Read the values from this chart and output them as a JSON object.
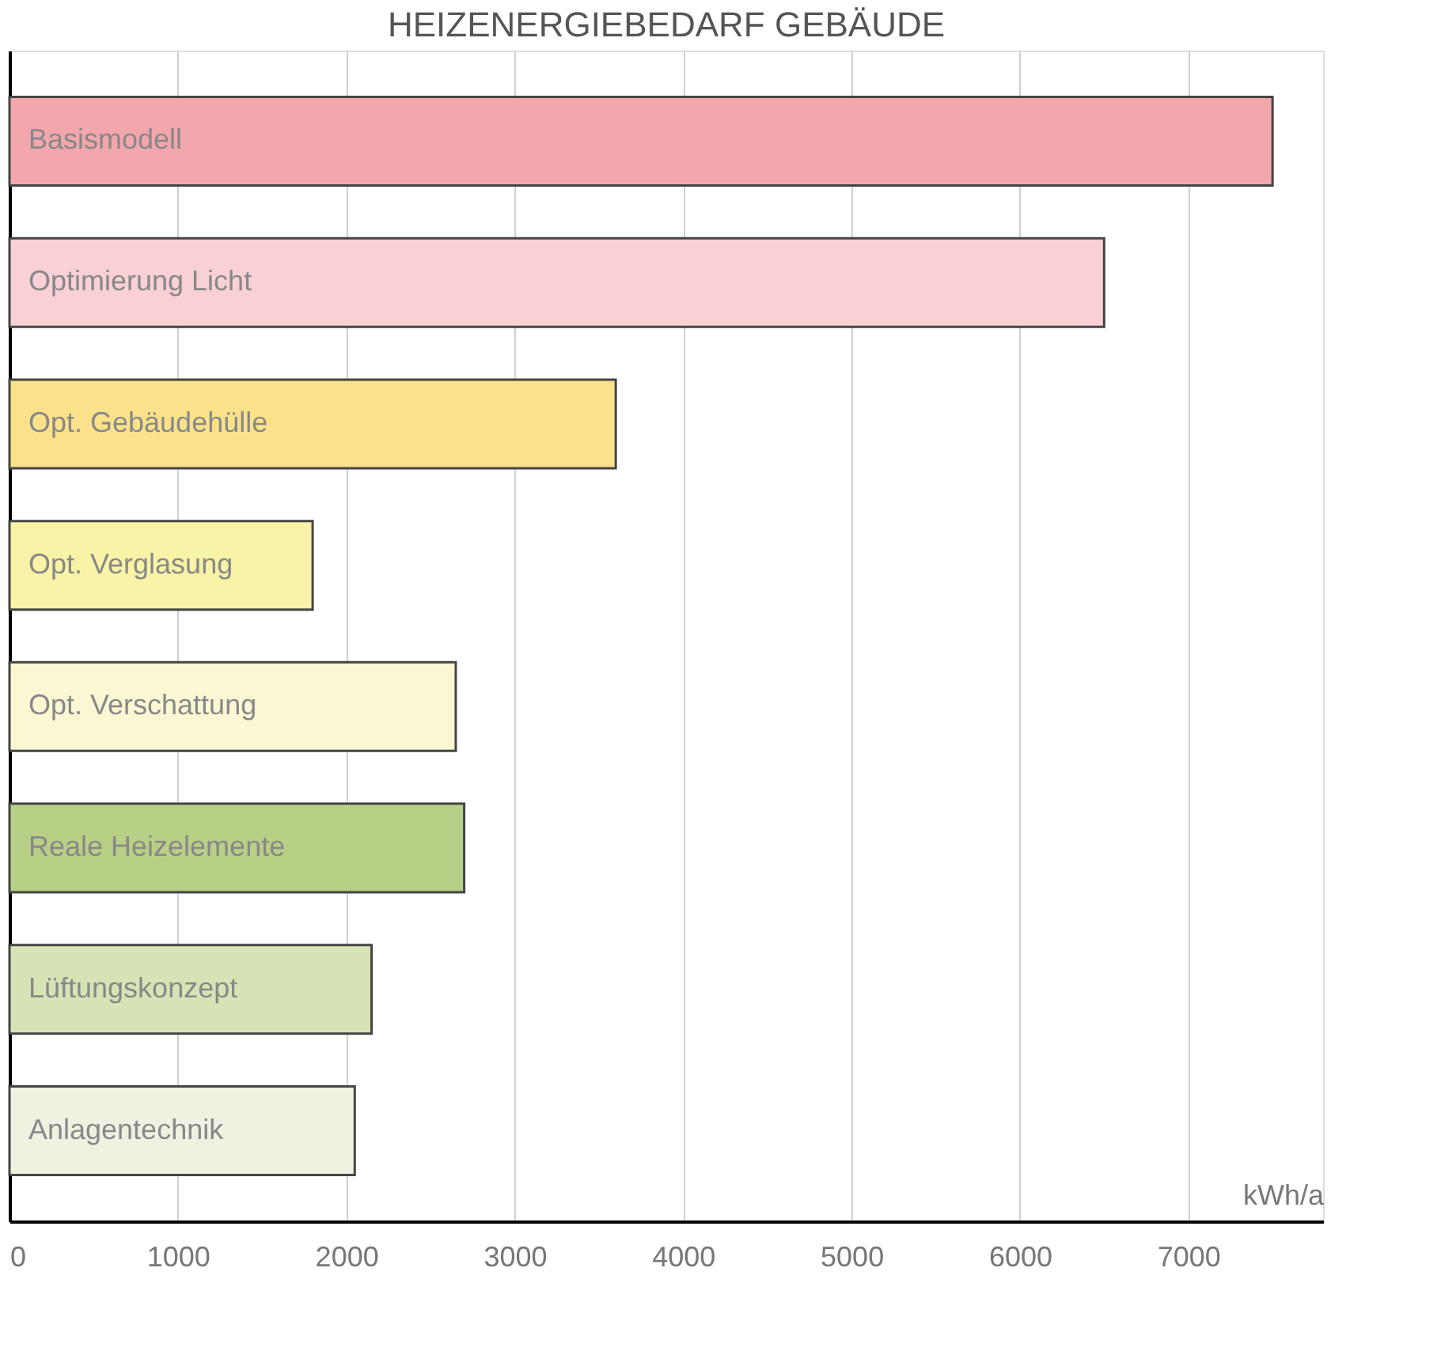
{
  "chart_data": {
    "type": "bar",
    "orientation": "horizontal",
    "title": "HEIZENERGIEBEDARF GEBÄUDE",
    "xlabel": "kWh/a",
    "categories": [
      "Basismodell",
      "Optimierung Licht",
      "Opt. Gebäudehülle",
      "Opt. Verglasung",
      "Opt. Verschattung",
      "Reale Heizelemente",
      "Lüftungskonzept",
      "Anlagentechnik"
    ],
    "values": [
      7500,
      6500,
      3600,
      1800,
      2650,
      2700,
      2150,
      2050
    ],
    "colors": [
      "#f4a6ad",
      "#f9d0d3",
      "#fbe28a",
      "#f8f3a6",
      "#fcf7d3",
      "#b8cf86",
      "#d6e4b5",
      "#edf2e1"
    ],
    "xlim": [
      0,
      7800
    ],
    "xticks": [
      0,
      1000,
      2000,
      3000,
      4000,
      5000,
      6000,
      7000
    ],
    "grid": "x"
  }
}
